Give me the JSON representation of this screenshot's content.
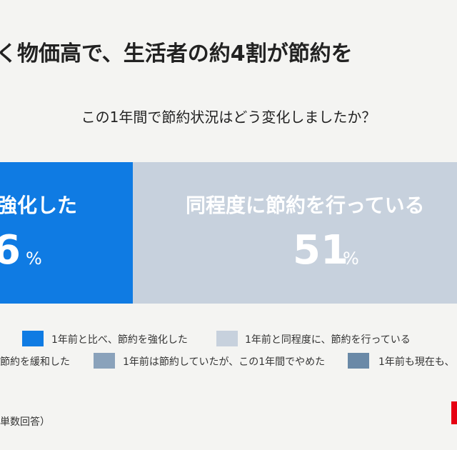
{
  "header": {
    "title": "く物価高で、生活者の約4割が節約を",
    "subtitle": "この1年間で節約状況はどう変化しましたか？"
  },
  "segments": [
    {
      "label": "強化した",
      "number": "6",
      "unit": "%"
    },
    {
      "label": "同程度に節約を行っている",
      "number": "51",
      "unit": "%"
    }
  ],
  "legend": [
    "1年前と比べ、節約を強化した",
    "1年前と同程度に、節約を行っている",
    "節約を緩和した",
    "1年前は節約していたが、この1年間でやめた",
    "1年前も現在も、"
  ],
  "footer": {
    "note": "単数回答）"
  }
}
